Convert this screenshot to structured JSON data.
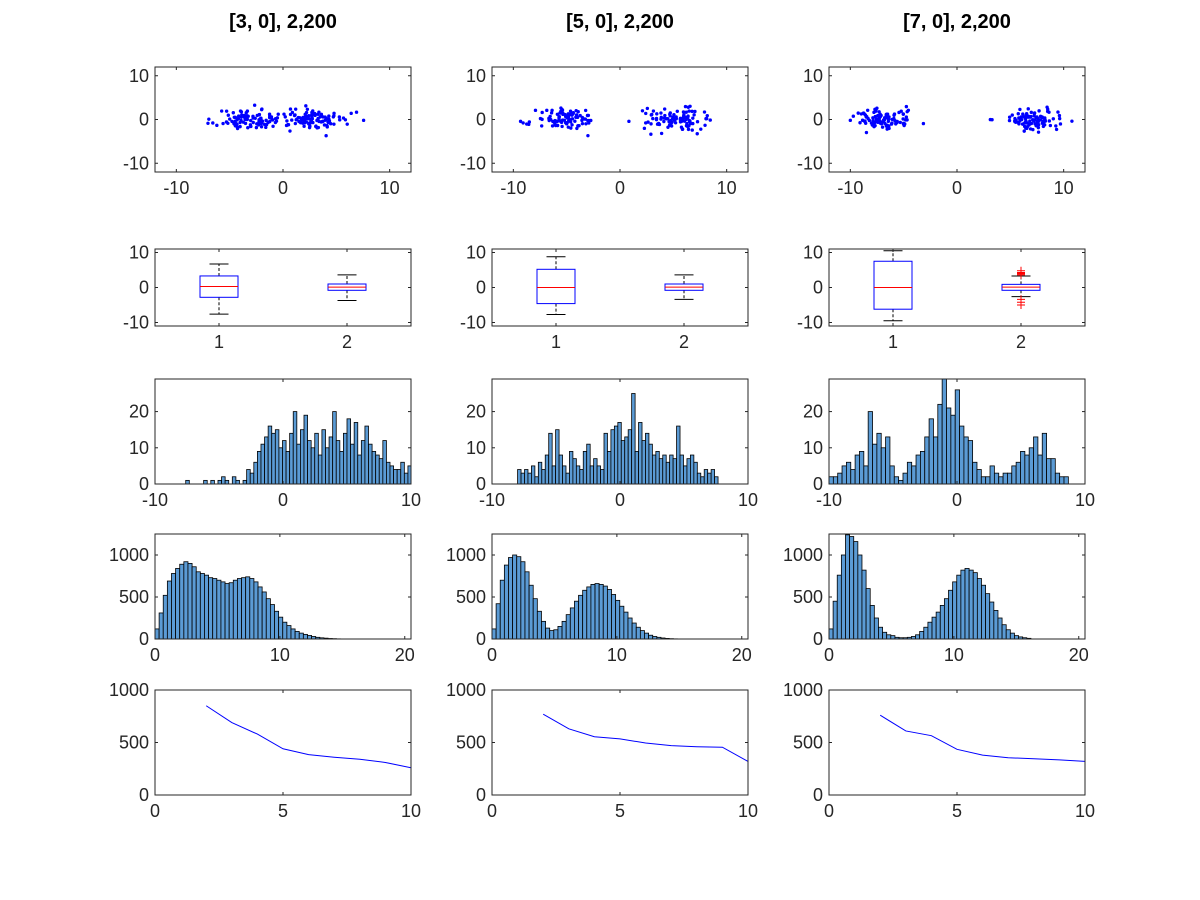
{
  "figure": {
    "columns": [
      {
        "title": "[3, 0], 2,200",
        "scatter": {
          "type": "scatter",
          "xlim": [
            -12,
            12
          ],
          "ylim": [
            -12,
            12
          ],
          "xticks": [
            -10,
            0,
            10
          ],
          "yticks": [
            -10,
            0,
            10
          ],
          "color": "#0000ff",
          "clusters": [
            {
              "cx": -3,
              "cy": 0,
              "sx": 1.6,
              "sy": 1.2,
              "n": 100,
              "seed": 11
            },
            {
              "cx": 3,
              "cy": 0,
              "sx": 1.6,
              "sy": 1.2,
              "n": 100,
              "seed": 12
            }
          ]
        },
        "boxplot": {
          "type": "box",
          "xlim": [
            0.5,
            2.5
          ],
          "ylim": [
            -11,
            11
          ],
          "xticks": [
            1,
            2
          ],
          "yticks": [
            -10,
            0,
            10
          ],
          "boxes": [
            {
              "q1": -2.8,
              "median": 0.3,
              "q3": 3.3,
              "whisker_low": -7.6,
              "whisker_high": 6.7,
              "outliers": []
            },
            {
              "q1": -0.8,
              "median": 0.1,
              "q3": 1.0,
              "whisker_low": -3.7,
              "whisker_high": 3.6,
              "outliers": []
            }
          ]
        },
        "hist_small": {
          "type": "histogram",
          "xlim": [
            -10,
            10
          ],
          "ylim": [
            0,
            29
          ],
          "xticks": [
            -10,
            0,
            10
          ],
          "yticks": [
            0,
            10,
            20
          ],
          "bin_start": -7.6,
          "bin_width": 0.28,
          "counts": [
            1,
            0,
            0,
            0,
            0,
            1,
            0,
            1,
            0,
            1,
            2,
            1,
            0,
            2,
            1,
            0,
            1,
            4,
            3,
            6,
            9,
            11,
            13,
            16,
            14,
            15,
            10,
            12,
            9,
            14,
            20,
            11,
            15,
            19,
            12,
            10,
            14,
            8,
            15,
            10,
            13,
            20,
            12,
            9,
            14,
            18,
            11,
            17,
            8,
            12,
            16,
            11,
            9,
            8,
            7,
            12,
            6,
            5,
            4,
            4,
            6,
            3,
            5,
            1,
            2,
            1,
            0,
            1
          ]
        },
        "hist_large": {
          "type": "histogram",
          "xlim": [
            0,
            20.5
          ],
          "ylim": [
            0,
            1250
          ],
          "xticks": [
            0,
            10,
            20
          ],
          "yticks": [
            0,
            500,
            1000
          ],
          "bin_start": 0,
          "bin_width": 0.33,
          "counts": [
            120,
            310,
            520,
            690,
            780,
            840,
            890,
            920,
            900,
            860,
            800,
            780,
            760,
            730,
            720,
            700,
            680,
            660,
            670,
            700,
            720,
            730,
            740,
            720,
            680,
            620,
            560,
            480,
            410,
            330,
            260,
            200,
            160,
            120,
            90,
            70,
            55,
            42,
            30,
            20,
            14,
            10,
            6,
            4,
            2,
            1
          ]
        },
        "line": {
          "type": "line",
          "xlim": [
            0,
            10
          ],
          "ylim": [
            0,
            1000
          ],
          "xticks": [
            0,
            5,
            10
          ],
          "yticks": [
            0,
            500,
            1000
          ],
          "color": "#0000ff",
          "x": [
            2,
            3,
            4,
            5,
            6,
            7,
            8,
            9,
            10
          ],
          "y": [
            850,
            690,
            580,
            440,
            385,
            360,
            340,
            310,
            260
          ]
        }
      },
      {
        "title": "[5, 0], 2,200",
        "scatter": {
          "type": "scatter",
          "xlim": [
            -12,
            12
          ],
          "ylim": [
            -12,
            12
          ],
          "xticks": [
            -10,
            0,
            10
          ],
          "yticks": [
            -10,
            0,
            10
          ],
          "color": "#0000ff",
          "clusters": [
            {
              "cx": -5,
              "cy": 0,
              "sx": 1.4,
              "sy": 1.2,
              "n": 100,
              "seed": 21
            },
            {
              "cx": 5,
              "cy": 0,
              "sx": 1.4,
              "sy": 1.2,
              "n": 100,
              "seed": 22
            }
          ]
        },
        "boxplot": {
          "type": "box",
          "xlim": [
            0.5,
            2.5
          ],
          "ylim": [
            -11,
            11
          ],
          "xticks": [
            1,
            2
          ],
          "yticks": [
            -10,
            0,
            10
          ],
          "boxes": [
            {
              "q1": -4.6,
              "median": 0.0,
              "q3": 5.2,
              "whisker_low": -7.7,
              "whisker_high": 8.8,
              "outliers": []
            },
            {
              "q1": -0.8,
              "median": 0.1,
              "q3": 1.0,
              "whisker_low": -3.4,
              "whisker_high": 3.6,
              "outliers": []
            }
          ]
        },
        "hist_small": {
          "type": "histogram",
          "xlim": [
            -10,
            10
          ],
          "ylim": [
            0,
            29
          ],
          "xticks": [
            -10,
            0,
            10
          ],
          "yticks": [
            0,
            10,
            20
          ],
          "bin_start": -8.0,
          "bin_width": 0.27,
          "counts": [
            4,
            3,
            4,
            3,
            5,
            2,
            6,
            4,
            8,
            14,
            5,
            15,
            8,
            5,
            3,
            9,
            7,
            5,
            4,
            9,
            11,
            5,
            7,
            5,
            4,
            14,
            9,
            15,
            16,
            17,
            12,
            13,
            15,
            25,
            9,
            17,
            12,
            14,
            11,
            8,
            9,
            7,
            8,
            6,
            8,
            7,
            16,
            8,
            5,
            7,
            8,
            6,
            3,
            2,
            4,
            3,
            4,
            2,
            0
          ]
        },
        "hist_large": {
          "type": "histogram",
          "xlim": [
            0,
            20.5
          ],
          "ylim": [
            0,
            1250
          ],
          "xticks": [
            0,
            10,
            20
          ],
          "yticks": [
            0,
            500,
            1000
          ],
          "bin_start": 0,
          "bin_width": 0.33,
          "counts": [
            120,
            420,
            700,
            880,
            970,
            1000,
            980,
            920,
            800,
            640,
            480,
            330,
            210,
            130,
            100,
            110,
            150,
            210,
            290,
            370,
            450,
            520,
            580,
            620,
            650,
            660,
            650,
            630,
            590,
            530,
            460,
            390,
            320,
            250,
            190,
            140,
            100,
            70,
            45,
            30,
            20,
            12,
            7,
            4,
            2,
            1
          ]
        },
        "line": {
          "type": "line",
          "xlim": [
            0,
            10
          ],
          "ylim": [
            0,
            1000
          ],
          "xticks": [
            0,
            5,
            10
          ],
          "yticks": [
            0,
            500,
            1000
          ],
          "color": "#0000ff",
          "x": [
            2,
            3,
            4,
            5,
            6,
            7,
            8,
            9,
            10
          ],
          "y": [
            770,
            630,
            555,
            535,
            495,
            470,
            460,
            455,
            320
          ]
        }
      },
      {
        "title": "[7, 0], 2,200",
        "scatter": {
          "type": "scatter",
          "xlim": [
            -12,
            12
          ],
          "ylim": [
            -12,
            12
          ],
          "xticks": [
            -10,
            0,
            10
          ],
          "yticks": [
            -10,
            0,
            10
          ],
          "color": "#0000ff",
          "clusters": [
            {
              "cx": -7,
              "cy": 0,
              "sx": 1.4,
              "sy": 1.2,
              "n": 100,
              "seed": 31
            },
            {
              "cx": 7,
              "cy": 0,
              "sx": 1.4,
              "sy": 1.2,
              "n": 100,
              "seed": 32
            }
          ]
        },
        "boxplot": {
          "type": "box",
          "xlim": [
            0.5,
            2.5
          ],
          "ylim": [
            -11,
            11
          ],
          "xticks": [
            1,
            2
          ],
          "yticks": [
            -10,
            0,
            10
          ],
          "boxes": [
            {
              "q1": -6.2,
              "median": 0.0,
              "q3": 7.5,
              "whisker_low": -9.5,
              "whisker_high": 10.5,
              "outliers": []
            },
            {
              "q1": -0.8,
              "median": 0.1,
              "q3": 0.9,
              "whisker_low": -2.6,
              "whisker_high": 3.3,
              "outliers": [
                3.6,
                4.0,
                4.3,
                4.8,
                3.9,
                -4.2,
                -5.0,
                -3.4
              ]
            }
          ]
        },
        "hist_small": {
          "type": "histogram",
          "xlim": [
            -10,
            10
          ],
          "ylim": [
            0,
            29
          ],
          "xticks": [
            -10,
            0,
            10
          ],
          "yticks": [
            0,
            10,
            20
          ],
          "bin_start": -10.0,
          "bin_width": 0.34,
          "counts": [
            2,
            2,
            3,
            5,
            6,
            4,
            8,
            9,
            5,
            20,
            11,
            14,
            10,
            13,
            5,
            2,
            1,
            3,
            6,
            5,
            8,
            9,
            13,
            18,
            13,
            22,
            29,
            21,
            19,
            26,
            16,
            13,
            12,
            6,
            4,
            2,
            2,
            5,
            3,
            2,
            3,
            3,
            5,
            6,
            9,
            8,
            10,
            13,
            8,
            14,
            7,
            7,
            3,
            2,
            2
          ]
        },
        "hist_large": {
          "type": "histogram",
          "xlim": [
            0,
            20.5
          ],
          "ylim": [
            0,
            1250
          ],
          "xticks": [
            0,
            10,
            20
          ],
          "yticks": [
            0,
            500,
            1000
          ],
          "bin_start": 0,
          "bin_width": 0.33,
          "counts": [
            120,
            450,
            760,
            1000,
            1240,
            1220,
            1160,
            1000,
            820,
            600,
            400,
            250,
            140,
            80,
            50,
            40,
            20,
            15,
            15,
            20,
            30,
            50,
            90,
            140,
            200,
            260,
            320,
            400,
            480,
            580,
            680,
            760,
            820,
            840,
            820,
            790,
            720,
            640,
            540,
            440,
            340,
            250,
            170,
            110,
            70,
            40,
            25,
            15,
            8
          ]
        },
        "line": {
          "type": "line",
          "xlim": [
            0,
            10
          ],
          "ylim": [
            0,
            1000
          ],
          "xticks": [
            0,
            5,
            10
          ],
          "yticks": [
            0,
            500,
            1000
          ],
          "color": "#0000ff",
          "x": [
            2,
            3,
            4,
            5,
            6,
            7,
            8,
            9,
            10
          ],
          "y": [
            760,
            610,
            565,
            435,
            380,
            355,
            345,
            335,
            320
          ]
        }
      }
    ]
  }
}
